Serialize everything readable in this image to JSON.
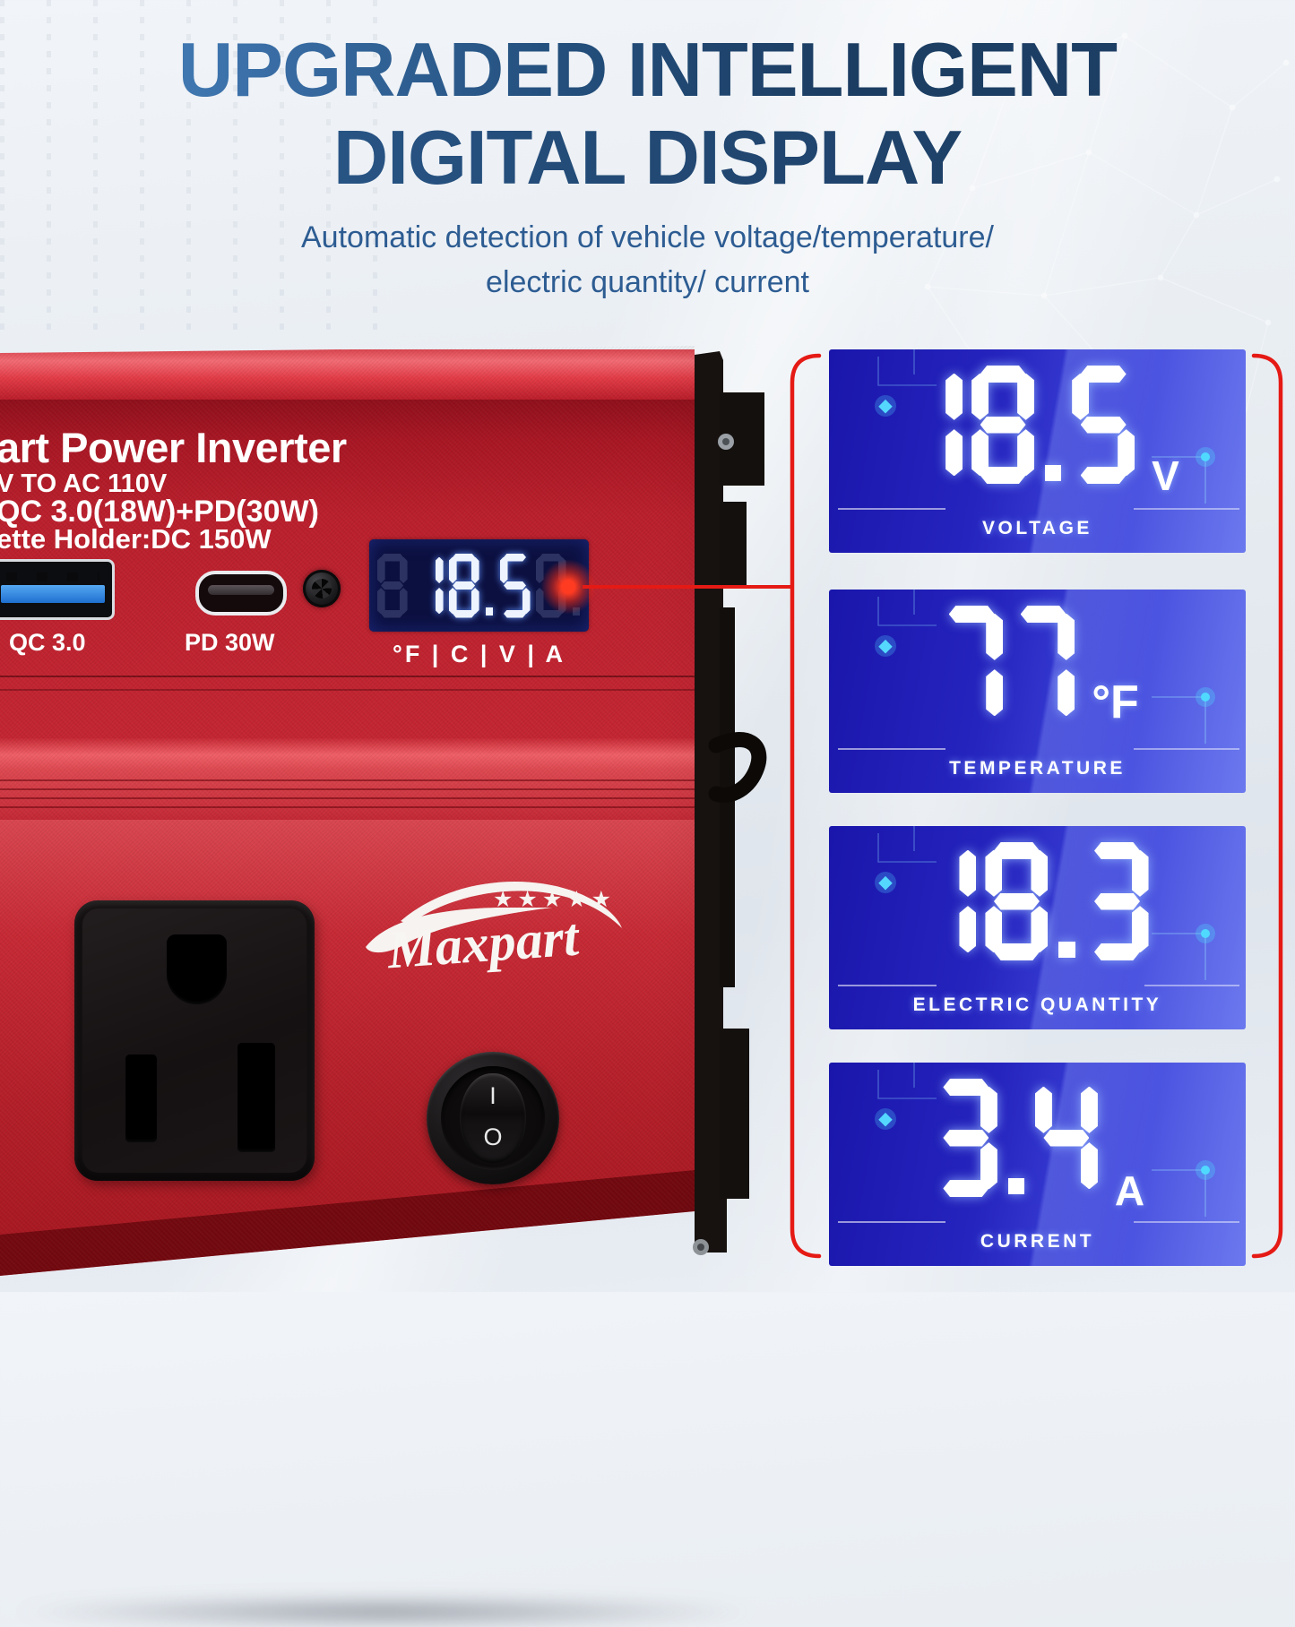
{
  "header": {
    "title_line1": "UPGRADED INTELLIGENT",
    "title_line2": "DIGITAL DISPLAY",
    "subtitle_line1": "Automatic detection of vehicle voltage/temperature/",
    "subtitle_line2": "electric quantity/ current"
  },
  "device": {
    "print_line1": "art Power Inverter",
    "print_line2": "V TO AC  110V",
    "print_line3": "QC 3.0(18W)+PD(30W)",
    "print_line4": "ette Holder:DC 150W",
    "usb_a_label": "QC 3.0",
    "usb_c_label": "PD 30W",
    "display": {
      "value": "18.5",
      "ghost_left": "8",
      "ghost_right": "0.",
      "units_row": "°F | C | V | A"
    },
    "brand": "Maxpart",
    "brand_stars": "★★★★★",
    "switch": {
      "on": "I",
      "off": "O"
    }
  },
  "panels": [
    {
      "value": "18.5",
      "unit": "V",
      "label": "VOLTAGE"
    },
    {
      "value": "77",
      "unit": "°F",
      "label": "TEMPERATURE"
    },
    {
      "value": "18.3",
      "unit": "",
      "label": "ELECTRIC QUANTITY"
    },
    {
      "value": "3.4",
      "unit": "A",
      "label": "CURRENT"
    }
  ],
  "colors": {
    "accent_red": "#e51a15",
    "body_red": "#c22531",
    "panel_blue_dark": "#1a16ab",
    "panel_blue_light": "#4f5ce8",
    "display_bg": "#0c1040",
    "title_blue_light": "#4e8ec9",
    "title_blue_dark": "#1c3d62"
  }
}
